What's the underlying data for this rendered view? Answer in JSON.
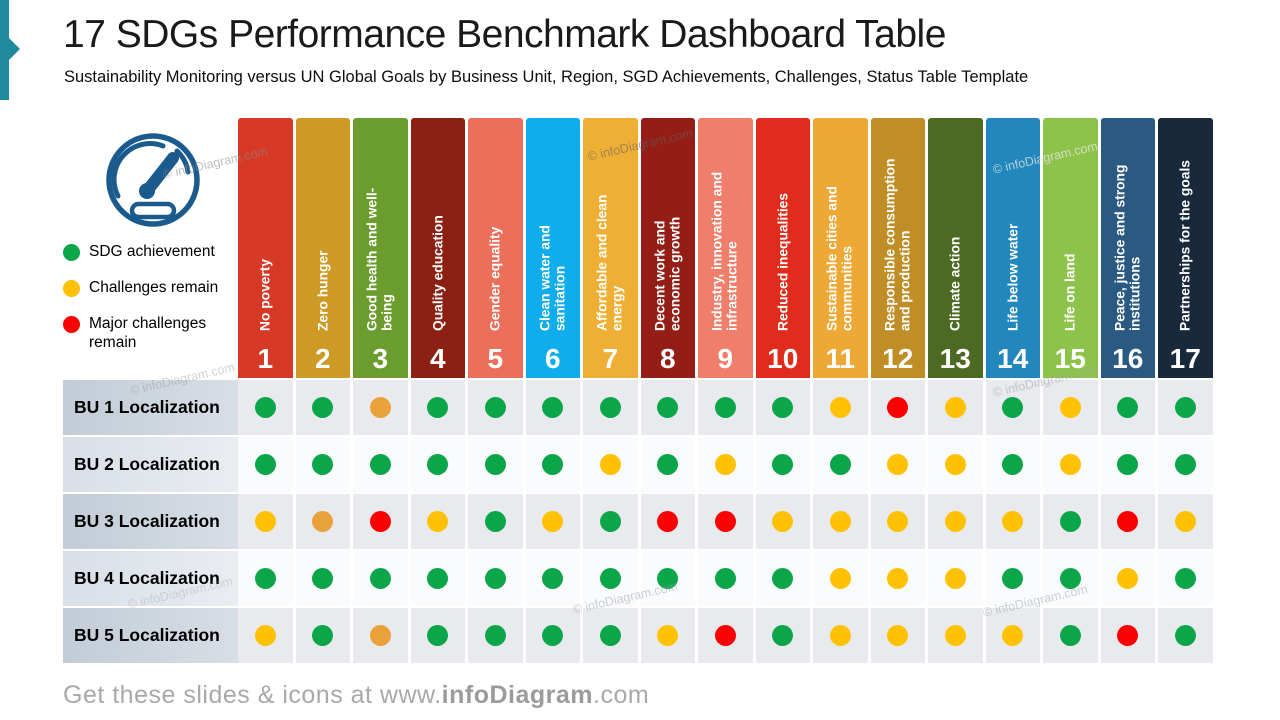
{
  "header": {
    "title": "17 SDGs Performance Benchmark Dashboard Table",
    "subtitle": "Sustainability Monitoring versus UN Global Goals by Business Unit, Region, SGD Achievements, Challenges, Status Table Template"
  },
  "accent_color": "#1F8A9E",
  "legend": {
    "items": [
      {
        "label": "SDG achievement",
        "color": "#0CA64A"
      },
      {
        "label": "Challenges remain",
        "color": "#FFC103"
      },
      {
        "label": "Major challenges remain",
        "color": "#FA0202"
      }
    ]
  },
  "status_colors": {
    "green": "#0CA64A",
    "yellow": "#FFC103",
    "orange": "#E9A23B",
    "red": "#FA0202"
  },
  "goals": [
    {
      "num": "1",
      "label": "No poverty",
      "color": "#D63A26"
    },
    {
      "num": "2",
      "label": "Zero hunger",
      "color": "#CD9A25"
    },
    {
      "num": "3",
      "label": "Good health and well-\nbeing",
      "color": "#6B9C2E"
    },
    {
      "num": "4",
      "label": "Quality education",
      "color": "#8C2113"
    },
    {
      "num": "5",
      "label": "Gender equality",
      "color": "#EC6F5C"
    },
    {
      "num": "6",
      "label": "Clean water and\nsanitation",
      "color": "#10ADEC"
    },
    {
      "num": "7",
      "label": "Affordable and clean\nenergy",
      "color": "#EFAF35"
    },
    {
      "num": "8",
      "label": "Decent work and\neconomic growth",
      "color": "#941E15"
    },
    {
      "num": "9",
      "label": "Industry, innovation and\ninfrastructure",
      "color": "#EF7E6B"
    },
    {
      "num": "10",
      "label": "Reduced inequalities",
      "color": "#DF2C1C"
    },
    {
      "num": "11",
      "label": "Sustainable cities and\ncommunities",
      "color": "#EDA836"
    },
    {
      "num": "12",
      "label": "Responsible consumption\nand production",
      "color": "#C08E26"
    },
    {
      "num": "13",
      "label": "Climate action",
      "color": "#4D6A24"
    },
    {
      "num": "14",
      "label": "Life below water",
      "color": "#2187BC"
    },
    {
      "num": "15",
      "label": "Life on land",
      "color": "#8EC34B"
    },
    {
      "num": "16",
      "label": "Peace, justice and strong\ninstitutions",
      "color": "#2A5A82"
    },
    {
      "num": "17",
      "label": "Partnerships for the goals",
      "color": "#18293B"
    }
  ],
  "rows": [
    {
      "label": "BU 1 Localization",
      "statuses": [
        "green",
        "green",
        "orange",
        "green",
        "green",
        "green",
        "green",
        "green",
        "green",
        "green",
        "yellow",
        "red",
        "yellow",
        "green",
        "yellow",
        "green",
        "green"
      ]
    },
    {
      "label": "BU 2 Localization",
      "statuses": [
        "green",
        "green",
        "green",
        "green",
        "green",
        "green",
        "yellow",
        "green",
        "yellow",
        "green",
        "green",
        "yellow",
        "yellow",
        "green",
        "yellow",
        "green",
        "green"
      ]
    },
    {
      "label": "BU 3 Localization",
      "statuses": [
        "yellow",
        "orange",
        "red",
        "yellow",
        "green",
        "yellow",
        "green",
        "red",
        "red",
        "yellow",
        "yellow",
        "yellow",
        "yellow",
        "yellow",
        "green",
        "red",
        "yellow"
      ]
    },
    {
      "label": "BU 4 Localization",
      "statuses": [
        "green",
        "green",
        "green",
        "green",
        "green",
        "green",
        "green",
        "green",
        "green",
        "green",
        "yellow",
        "yellow",
        "yellow",
        "green",
        "green",
        "yellow",
        "green"
      ]
    },
    {
      "label": "BU 5 Localization",
      "statuses": [
        "yellow",
        "green",
        "orange",
        "green",
        "green",
        "green",
        "green",
        "yellow",
        "red",
        "green",
        "yellow",
        "yellow",
        "yellow",
        "yellow",
        "green",
        "red",
        "green"
      ]
    }
  ],
  "watermark": "© infoDiagram.com",
  "footer": {
    "prefix": "Get these slides & icons at www.",
    "brand": "infoDiagram",
    "suffix": ".com"
  }
}
